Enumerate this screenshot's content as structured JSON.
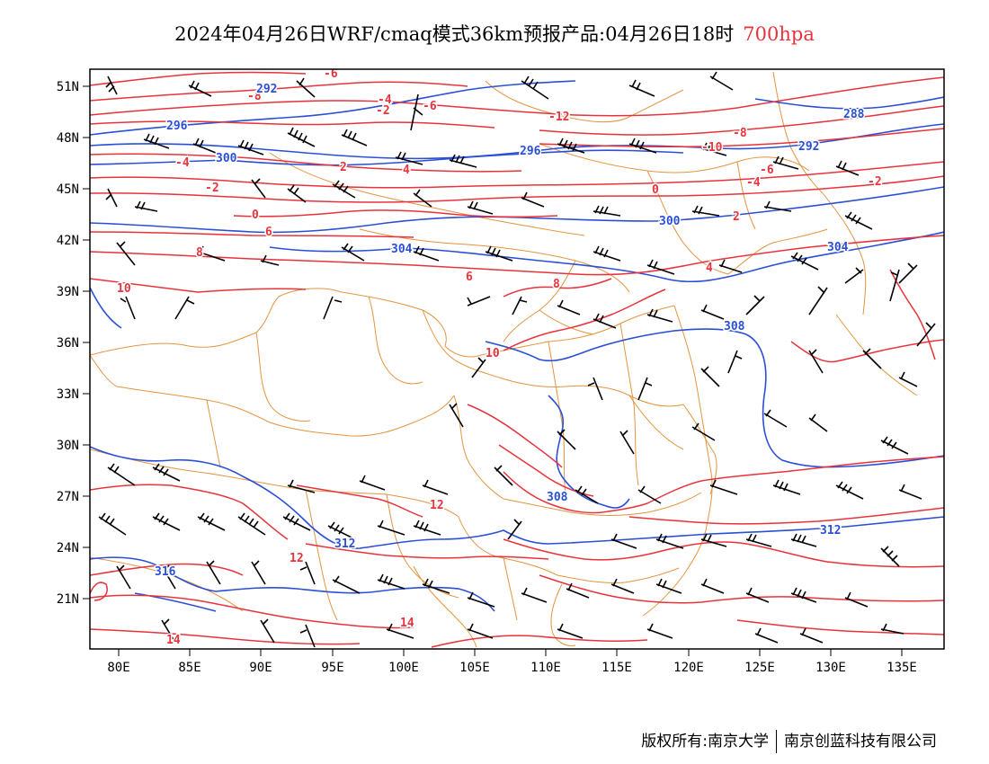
{
  "title": {
    "main": "2024年04月26日WRF/cmaq模式36km预报产品:04月26日18时",
    "level": "700hpa"
  },
  "colors": {
    "temperature_contour": "#e8333c",
    "height_contour": "#2a4fd6",
    "borders": "#e3943e",
    "wind_barb": "#000000",
    "frame": "#000000"
  },
  "axes": {
    "lon_labels": [
      "80E",
      "85E",
      "90E",
      "95E",
      "100E",
      "105E",
      "110E",
      "115E",
      "120E",
      "125E",
      "130E",
      "135E"
    ],
    "lat_labels": [
      "51N",
      "48N",
      "45N",
      "42N",
      "39N",
      "36N",
      "33N",
      "30N",
      "27N",
      "24N",
      "21N"
    ]
  },
  "map_data": {
    "projection": "lat-lon",
    "lon_range": [
      78,
      138
    ],
    "lat_range": [
      18,
      52
    ],
    "temperature_labels": [
      "-8",
      "-6",
      "-4",
      "-2",
      "-6",
      "-4",
      "-2",
      "0",
      "2",
      "4",
      "6",
      "8",
      "10",
      "12",
      "14",
      "-12",
      "-10",
      "-8",
      "-6",
      "-4",
      "-2",
      "0",
      "2",
      "4",
      "6",
      "8",
      "10",
      "12",
      "14"
    ],
    "height_labels": [
      "292",
      "296",
      "300",
      "304",
      "308",
      "312",
      "316",
      "288",
      "292",
      "296",
      "300",
      "304",
      "308",
      "312"
    ]
  },
  "footer": {
    "copyright": "版权所有:南京大学",
    "company": "南京创蓝科技有限公司"
  }
}
